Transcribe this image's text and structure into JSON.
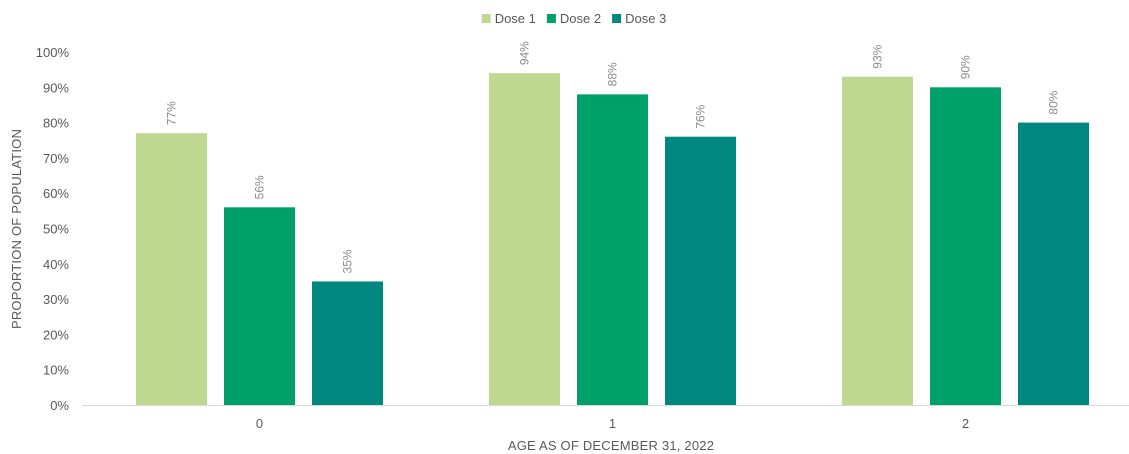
{
  "chart_data": {
    "type": "bar",
    "categories": [
      "0",
      "1",
      "2"
    ],
    "series": [
      {
        "name": "Dose 1",
        "color": "#bfd88f",
        "values": [
          77,
          94,
          93
        ],
        "labels": [
          "77%",
          "94%",
          "93%"
        ]
      },
      {
        "name": "Dose 2",
        "color": "#00a06a",
        "values": [
          56,
          88,
          90
        ],
        "labels": [
          "56%",
          "88%",
          "90%"
        ]
      },
      {
        "name": "Dose 3",
        "color": "#008880",
        "values": [
          35,
          76,
          80
        ],
        "labels": [
          "35%",
          "76%",
          "80%"
        ]
      }
    ],
    "y_ticks": [
      "0%",
      "10%",
      "20%",
      "30%",
      "40%",
      "50%",
      "60%",
      "70%",
      "80%",
      "90%",
      "100%"
    ],
    "ylim": [
      0,
      100
    ],
    "xlabel": "AGE AS OF DECEMBER 31, 2022",
    "ylabel": "PROPORTION OF POPULATION",
    "legend_position": "top-center",
    "grid": false
  }
}
